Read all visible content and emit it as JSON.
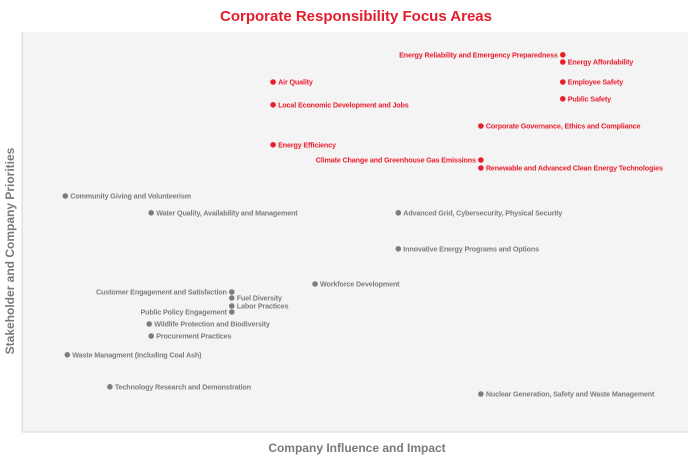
{
  "chart_data": {
    "type": "scatter",
    "title": "Corporate Responsibility Focus Areas",
    "xlabel": "Company Influence and Impact",
    "ylabel": "Stakeholder and Company Priorities",
    "xlim": [
      0,
      100
    ],
    "ylim": [
      0,
      100
    ],
    "grid": false,
    "colors": {
      "priority": "#e8202e",
      "other": "#7d7d7d",
      "title": "#e31d2b",
      "plot_bg": "#f4f4f5"
    },
    "points": [
      {
        "label": "Energy Reliability and Emergency Preparedness",
        "x": 81.2,
        "y": 94.3,
        "group": "priority",
        "label_side": "left"
      },
      {
        "label": "Energy Affordability",
        "x": 81.2,
        "y": 92.5,
        "group": "priority",
        "label_side": "right"
      },
      {
        "label": "Air Quality",
        "x": 37.7,
        "y": 87.5,
        "group": "priority",
        "label_side": "right"
      },
      {
        "label": "Employee Safety",
        "x": 81.2,
        "y": 87.5,
        "group": "priority",
        "label_side": "right"
      },
      {
        "label": "Public Safety",
        "x": 81.2,
        "y": 83.3,
        "group": "priority",
        "label_side": "right"
      },
      {
        "label": "Local Economic Development and Jobs",
        "x": 37.7,
        "y": 81.8,
        "group": "priority",
        "label_side": "right"
      },
      {
        "label": "Corporate Governance, Ethics and Compliance",
        "x": 68.9,
        "y": 76.5,
        "group": "priority",
        "label_side": "right"
      },
      {
        "label": "Energy Efficiency",
        "x": 37.7,
        "y": 71.8,
        "group": "priority",
        "label_side": "right"
      },
      {
        "label": "Climate Change and Greenhouse Gas Emissions",
        "x": 68.9,
        "y": 68.0,
        "group": "priority",
        "label_side": "left"
      },
      {
        "label": "Renewable and Advanced Clean Energy Technologies",
        "x": 68.9,
        "y": 66.0,
        "group": "priority",
        "label_side": "right"
      },
      {
        "label": "Community Giving and Volunteerism",
        "x": 6.5,
        "y": 59.0,
        "group": "other",
        "label_side": "right"
      },
      {
        "label": "Water Quality, Availability and Management",
        "x": 19.4,
        "y": 54.8,
        "group": "other",
        "label_side": "right"
      },
      {
        "label": "Advanced Grid, Cybersecurity, Physical Security",
        "x": 56.5,
        "y": 54.8,
        "group": "other",
        "label_side": "right"
      },
      {
        "label": "Innovative Energy Programs and Options",
        "x": 56.5,
        "y": 45.8,
        "group": "other",
        "label_side": "right"
      },
      {
        "label": "Workforce Development",
        "x": 44.0,
        "y": 37.0,
        "group": "other",
        "label_side": "right"
      },
      {
        "label": "Customer Engagement and Satisfaction",
        "x": 31.5,
        "y": 35.0,
        "group": "other",
        "label_side": "left"
      },
      {
        "label": "Fuel Diversity",
        "x": 31.5,
        "y": 33.5,
        "group": "other",
        "label_side": "right"
      },
      {
        "label": "Labor Practices",
        "x": 31.5,
        "y": 31.5,
        "group": "other",
        "label_side": "right"
      },
      {
        "label": "Public Policy Engagement",
        "x": 31.5,
        "y": 30.0,
        "group": "other",
        "label_side": "left"
      },
      {
        "label": "Wildlife Protection and Biodiversity",
        "x": 19.1,
        "y": 27.0,
        "group": "other",
        "label_side": "right"
      },
      {
        "label": "Procurement Practices",
        "x": 19.4,
        "y": 24.0,
        "group": "other",
        "label_side": "right"
      },
      {
        "label": "Waste Managment (Including Coal Ash)",
        "x": 6.8,
        "y": 19.3,
        "group": "other",
        "label_side": "right"
      },
      {
        "label": "Technology Research and Demonstration",
        "x": 13.2,
        "y": 11.3,
        "group": "other",
        "label_side": "right"
      },
      {
        "label": "Nuclear Generation, Safety and Waste Management",
        "x": 68.9,
        "y": 9.5,
        "group": "other",
        "label_side": "right"
      }
    ]
  }
}
